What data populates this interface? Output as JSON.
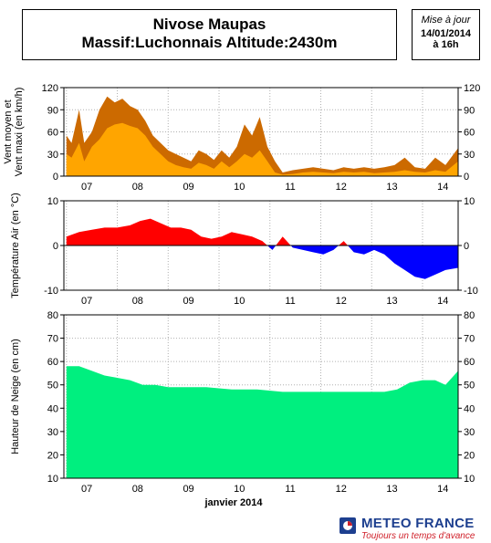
{
  "header": {
    "title_line1": "Nivose Maupas",
    "title_line2": "Massif:Luchonnais Altitude:2430m",
    "issued_label": "Mise à jour",
    "issued_date": "14/01/2014",
    "issued_time": "à 16h"
  },
  "brand": {
    "name": "METEO FRANCE",
    "tagline": "Toujours un temps d'avance"
  },
  "colors": {
    "wind_mean": "#ffa500",
    "wind_gust": "#cc6a00",
    "temp_positive": "#ff0000",
    "temp_negative": "#0000ff",
    "snow": "#00ef7f",
    "brand_blue": "#1d3f8f",
    "brand_red": "#d0202a"
  },
  "chart_data": [
    {
      "type": "area",
      "ylabel": "Vent moyen et Vent maxi (en km/h)",
      "ylim": [
        0,
        120
      ],
      "yticks": [
        0,
        30,
        60,
        90,
        120
      ],
      "xticks": [
        "07",
        "08",
        "09",
        "10",
        "11",
        "12",
        "13",
        "14"
      ],
      "grid": true,
      "x": [
        6.75,
        6.85,
        7.0,
        7.1,
        7.25,
        7.4,
        7.55,
        7.7,
        7.85,
        8.0,
        8.15,
        8.3,
        8.45,
        8.6,
        8.75,
        8.9,
        9.05,
        9.2,
        9.35,
        9.5,
        9.65,
        9.8,
        9.95,
        10.1,
        10.25,
        10.4,
        10.55,
        10.7,
        10.85,
        11.0,
        11.2,
        11.4,
        11.6,
        11.8,
        12.0,
        12.2,
        12.4,
        12.6,
        12.8,
        13.0,
        13.2,
        13.4,
        13.6,
        13.8,
        14.0,
        14.2,
        14.45
      ],
      "series": [
        {
          "name": "Vent moyen",
          "values": [
            30,
            25,
            45,
            20,
            40,
            50,
            65,
            70,
            72,
            68,
            65,
            55,
            40,
            30,
            20,
            15,
            12,
            10,
            18,
            15,
            10,
            20,
            12,
            20,
            30,
            25,
            35,
            20,
            5,
            2,
            3,
            5,
            6,
            5,
            4,
            6,
            5,
            6,
            4,
            5,
            6,
            8,
            6,
            5,
            8,
            6,
            20
          ]
        },
        {
          "name": "Vent maxi",
          "values": [
            55,
            45,
            90,
            45,
            60,
            90,
            108,
            100,
            105,
            95,
            90,
            75,
            55,
            45,
            35,
            30,
            25,
            20,
            35,
            30,
            22,
            35,
            25,
            40,
            70,
            55,
            80,
            40,
            20,
            5,
            8,
            10,
            12,
            10,
            8,
            12,
            10,
            12,
            10,
            12,
            15,
            25,
            12,
            10,
            25,
            15,
            38
          ]
        }
      ]
    },
    {
      "type": "area",
      "ylabel": "Température Air (en °C)",
      "ylim": [
        -10,
        10
      ],
      "yticks": [
        -10,
        0,
        10
      ],
      "xticks": [
        "07",
        "08",
        "09",
        "10",
        "11",
        "12",
        "13",
        "14"
      ],
      "grid": true,
      "x": [
        6.75,
        7.0,
        7.25,
        7.5,
        7.75,
        8.0,
        8.2,
        8.4,
        8.6,
        8.8,
        9.0,
        9.2,
        9.4,
        9.6,
        9.8,
        10.0,
        10.2,
        10.4,
        10.6,
        10.8,
        11.0,
        11.2,
        11.4,
        11.6,
        11.8,
        12.0,
        12.2,
        12.4,
        12.6,
        12.8,
        13.0,
        13.2,
        13.4,
        13.6,
        13.8,
        14.0,
        14.2,
        14.45
      ],
      "series": [
        {
          "name": "Température",
          "values": [
            2,
            3,
            3.5,
            4,
            4,
            4.5,
            5.5,
            6,
            5,
            4,
            4,
            3.5,
            2,
            1.5,
            2,
            3,
            2.5,
            2,
            1,
            -1,
            2,
            -0.5,
            -1,
            -1.5,
            -2,
            -1,
            1,
            -1.5,
            -2,
            -1,
            -2,
            -4,
            -5.5,
            -7,
            -7.5,
            -6.5,
            -5.5,
            -5
          ]
        }
      ]
    },
    {
      "type": "area",
      "ylabel": "Hauteur de Neige (en cm)",
      "xlabel": "janvier 2014",
      "ylim": [
        10,
        80
      ],
      "yticks": [
        10,
        20,
        30,
        40,
        50,
        60,
        70,
        80
      ],
      "xticks": [
        "07",
        "08",
        "09",
        "10",
        "11",
        "12",
        "13",
        "14"
      ],
      "grid": true,
      "x": [
        6.75,
        7.0,
        7.25,
        7.5,
        7.75,
        8.0,
        8.25,
        8.5,
        8.75,
        9.0,
        9.5,
        10.0,
        10.5,
        11.0,
        11.5,
        12.0,
        12.5,
        13.0,
        13.25,
        13.5,
        13.75,
        14.0,
        14.2,
        14.45
      ],
      "series": [
        {
          "name": "Hauteur de neige",
          "values": [
            58,
            58,
            56,
            54,
            53,
            52,
            50,
            50,
            49,
            49,
            49,
            48,
            48,
            47,
            47,
            47,
            47,
            47,
            48,
            51,
            52,
            52,
            50,
            56
          ]
        }
      ]
    }
  ]
}
